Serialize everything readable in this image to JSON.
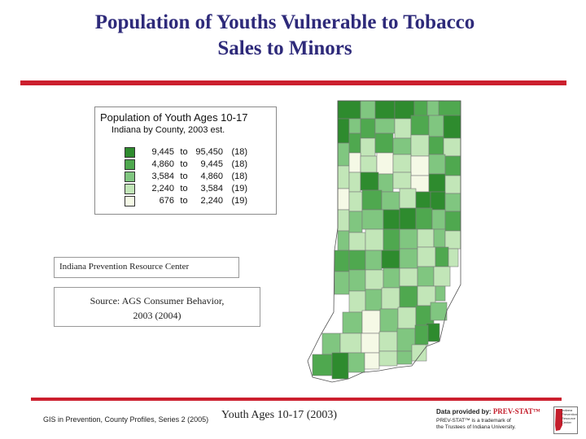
{
  "title_line1": "Population of Youths Vulnerable to Tobacco",
  "title_line2": "Sales to Minors",
  "legend": {
    "title": "Population of Youth Ages 10-17",
    "subtitle": "Indiana by County, 2003 est.",
    "items": [
      {
        "from": "9,445",
        "to_word": "to",
        "to": "95,450",
        "count": "(18)",
        "color": "#2e8b2e"
      },
      {
        "from": "4,860",
        "to_word": "to",
        "to": "9,445",
        "count": "(18)",
        "color": "#4fa84f"
      },
      {
        "from": "3,584",
        "to_word": "to",
        "to": "4,860",
        "count": "(18)",
        "color": "#80c680"
      },
      {
        "from": "2,240",
        "to_word": "to",
        "to": "3,584",
        "count": "(19)",
        "color": "#c2e6b8"
      },
      {
        "from": "676",
        "to_word": "to",
        "to": "2,240",
        "count": "(19)",
        "color": "#f5f9e6"
      }
    ]
  },
  "ipre_label": "Indiana Prevention Resource Center",
  "source_line1": "Source:  AGS Consumer Behavior,",
  "source_line2": "2003 (2004)",
  "footer_small": "GIS in Prevention, County Profiles, Series 2 (2005)",
  "footer_main": "Youth Ages 10-17 (2003)",
  "prev_stat": {
    "line1_prefix": "Data provided by:",
    "brand": "PREV-STAT™",
    "line2": "PREV-STAT™ is a trademark of",
    "line3": "the Trustees of Indiana University.",
    "logo_text": "Indiana Prevention Resource Center"
  },
  "colors": {
    "accent_rule": "#cc1f2e",
    "title": "#2e2a7a",
    "class1": "#2e8b2e",
    "class2": "#4fa84f",
    "class3": "#80c680",
    "class4": "#c2e6b8",
    "class5": "#f5f9e6"
  }
}
